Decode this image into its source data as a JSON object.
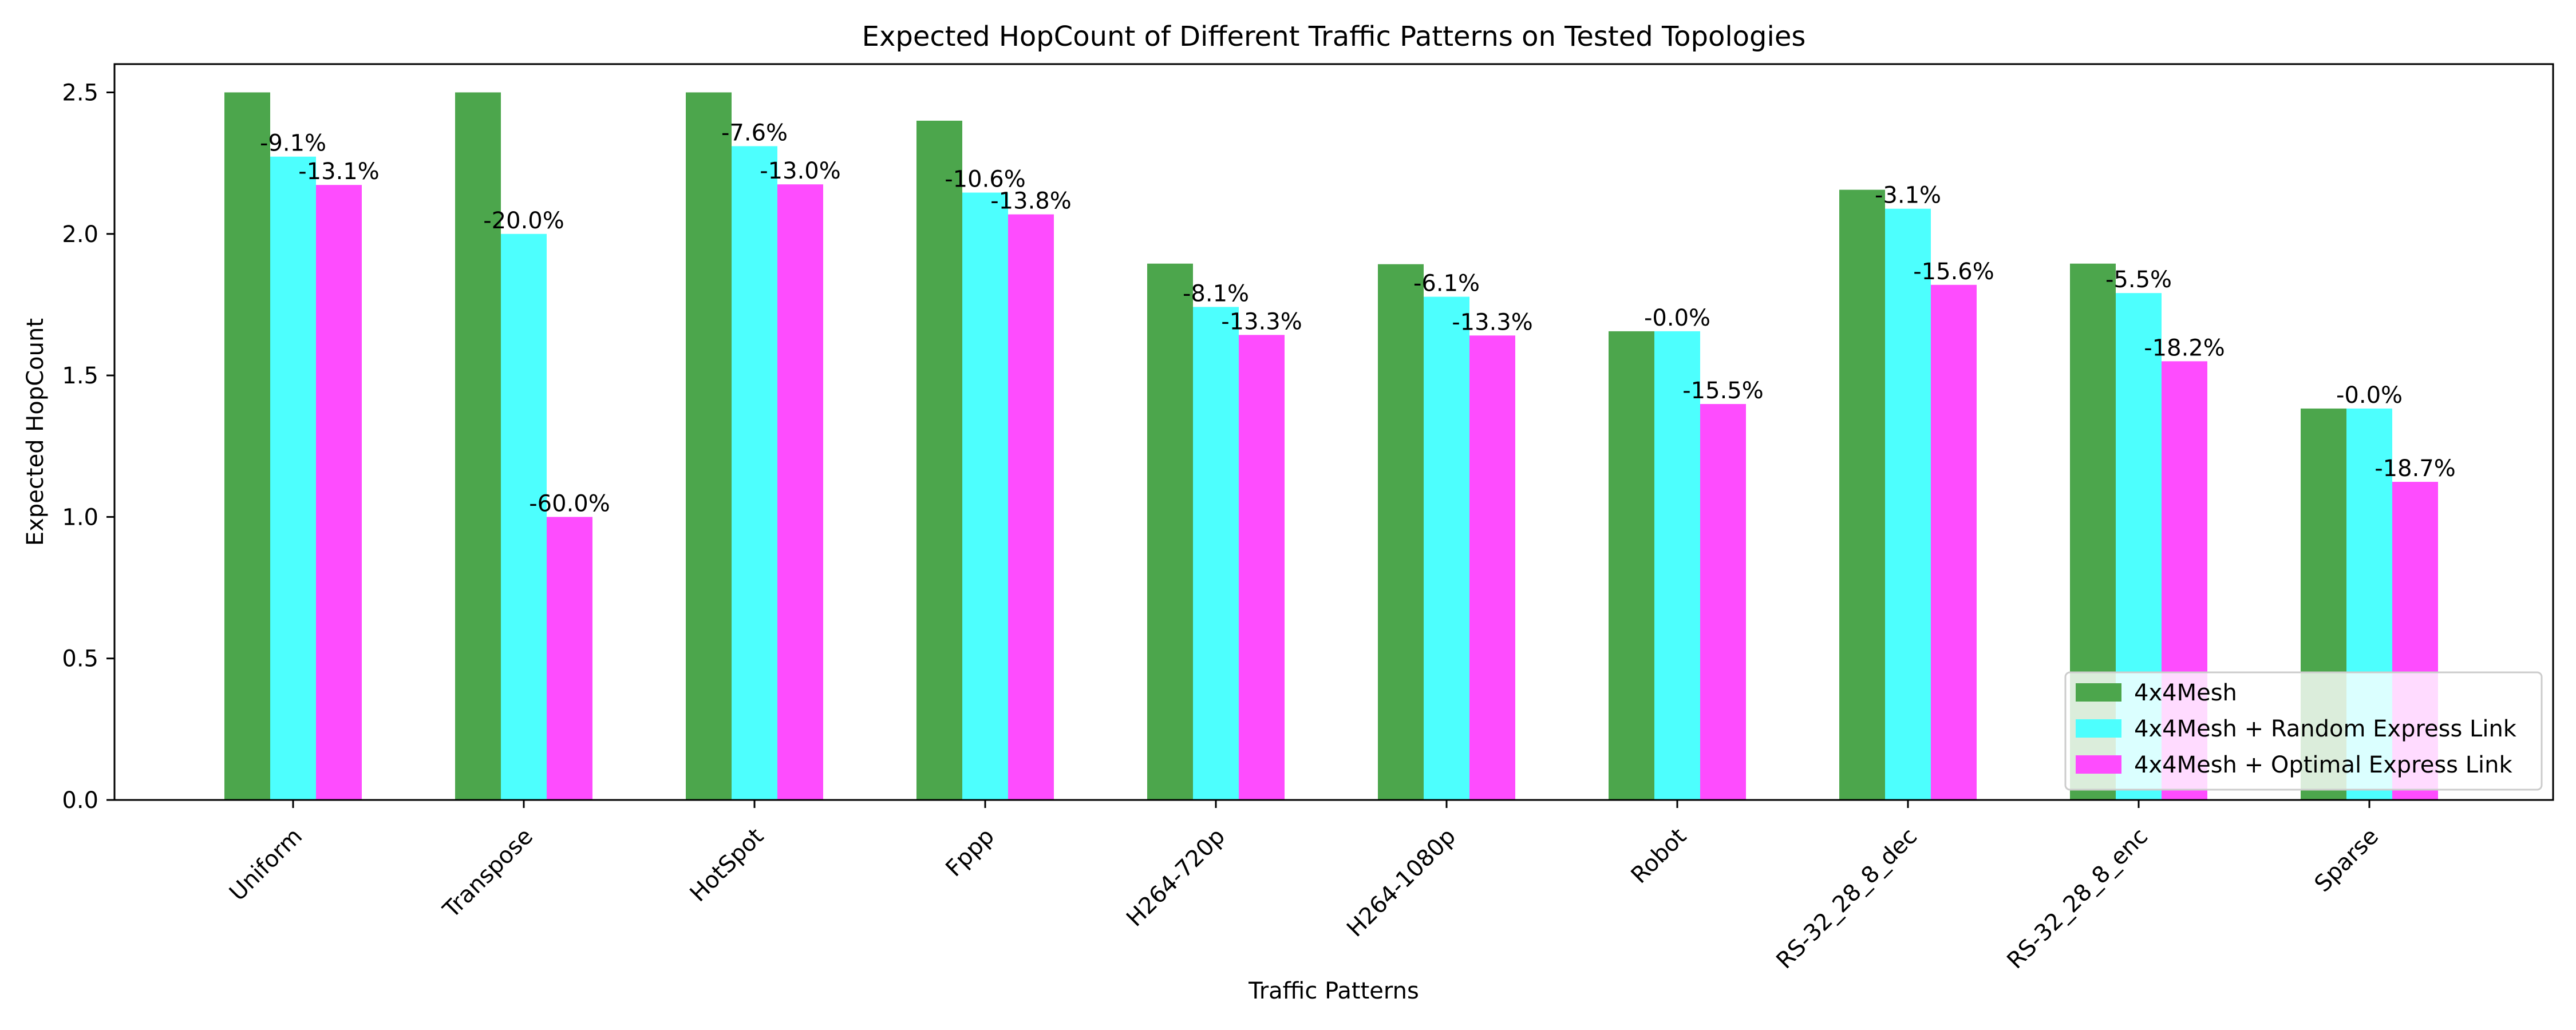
{
  "chart_data": {
    "type": "bar",
    "title": "Expected HopCount of Different Traffic Patterns on Tested Topologies",
    "xlabel": "Traffic Patterns",
    "ylabel": "Expected HopCount",
    "ylim": [
      0,
      2.6
    ],
    "yticks": [
      "0.0",
      "0.5",
      "1.0",
      "1.5",
      "2.0",
      "2.5"
    ],
    "categories": [
      "Uniform",
      "Transpose",
      "HotSpot",
      "Fppp",
      "H264-720p",
      "H264-1080p",
      "Robot",
      "RS-32_28_8_dec",
      "RS-32_28_8_enc",
      "Sparse"
    ],
    "series": [
      {
        "name": "4x4Mesh",
        "color": "#4ca64c",
        "values": [
          2.5,
          2.5,
          2.5,
          2.4,
          1.895,
          1.893,
          1.656,
          2.156,
          1.895,
          1.383
        ],
        "labels": [
          "",
          "",
          "",
          "",
          "",
          "",
          "",
          "",
          "",
          ""
        ]
      },
      {
        "name": "4x4Mesh + Random Express Link",
        "color": "#4dfffe",
        "values": [
          2.273,
          2.0,
          2.31,
          2.146,
          1.742,
          1.778,
          1.656,
          2.089,
          1.791,
          1.383
        ],
        "labels": [
          "-9.1%",
          "-20.0%",
          "-7.6%",
          "-10.6%",
          "-8.1%",
          "-6.1%",
          "-0.0%",
          "-3.1%",
          "-5.5%",
          "-0.0%"
        ]
      },
      {
        "name": "4x4Mesh + Optimal Express Link",
        "color": "#fe4cfe",
        "values": [
          2.173,
          1.0,
          2.175,
          2.069,
          1.643,
          1.641,
          1.399,
          1.82,
          1.55,
          1.124
        ],
        "labels": [
          "-13.1%",
          "-60.0%",
          "-13.0%",
          "-13.8%",
          "-13.3%",
          "-13.3%",
          "-15.5%",
          "-15.6%",
          "-18.2%",
          "-18.7%"
        ]
      }
    ],
    "legend_position": "lower-right",
    "grid": false
  }
}
